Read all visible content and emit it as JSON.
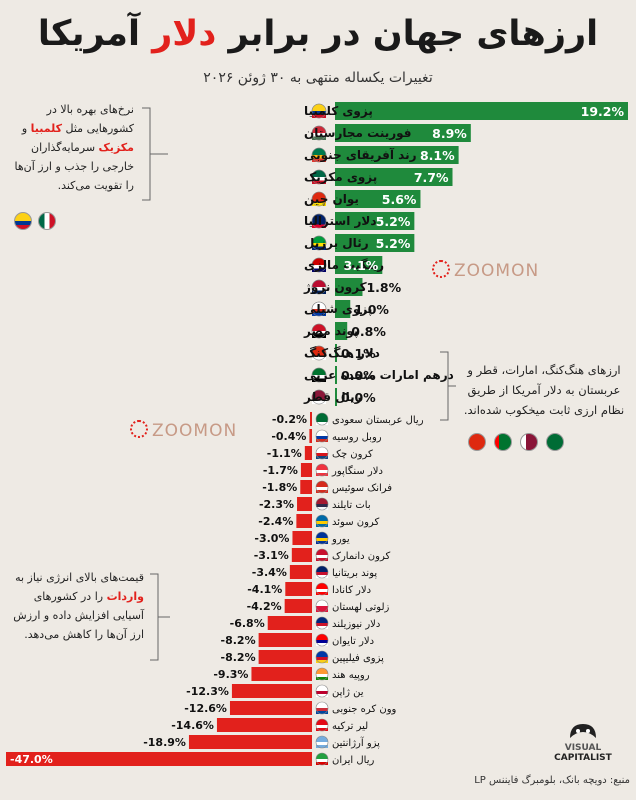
{
  "title_main": "ارزهای جهان در برابر",
  "title_accent": "دلار",
  "title_end": "آمریکا",
  "subtitle": "تغییرات یکساله منتهی به ۳۰ ژوئن ۲۰۲۶",
  "note_topleft": {
    "line1": "نرخ‌های بهره بالا در کشورهایی مثل",
    "red1": "کلمبیا",
    "mid": "و",
    "red2": "مکزیک",
    "line2": "سرمایه‌گذاران خارجی را جذب و ارز آن‌ها را تقویت می‌کند."
  },
  "note_right": "ارزهای هنگ‌کنگ، امارات، قطر و عربستان به دلار آمریکا از طریق نظام ارزی ثابت میخکوب شده‌اند.",
  "note_bottomleft": {
    "line1": "قیمت‌های بالای انرژی نیاز به",
    "red": "واردات",
    "line2": "را در کشورهای آسیایی افزایش داده و ارزش ارز آن‌ها را کاهش می‌دهد."
  },
  "watermark": "ZOOMON",
  "logo_line1": "VISUAL",
  "logo_line2": "CAPITALIST",
  "source": "منبع: دویچه بانک، بلومبرگ فایننس LP",
  "colors": {
    "positive": "#1f8a3c",
    "negative": "#e2211c",
    "neutral": "#1f8a3c"
  },
  "chart_data": {
    "type": "bar",
    "orientation": "horizontal",
    "categories": [
      "پزوی کلمبیا",
      "فورینت مجارستان",
      "رند آفریقای جنوبی",
      "پزوی مکزیک",
      "یوان چین",
      "دلار استرالیا",
      "رئال برزیل",
      "رینگیت مالزی",
      "کرون نروژ",
      "پزوی شیلی",
      "پوند مصر",
      "دلار هنگ‌کنگ",
      "درهم امارات متحده عربی",
      "ریال قطر",
      "ریال عربستان سعودی",
      "روبل روسیه",
      "کرون چک",
      "دلار سنگاپور",
      "فرانک سوئیس",
      "بات تایلند",
      "کرون سوئد",
      "یورو",
      "کرون دانمارک",
      "پوند بریتانیا",
      "دلار کانادا",
      "زلوتی لهستان",
      "دلار نیوزیلند",
      "دلار تایوان",
      "پزوی فیلیپین",
      "روپیه هند",
      "ین ژاپن",
      "وون کره جنوبی",
      "لیر ترکیه",
      "پزو آرژانتین",
      "ریال ایران"
    ],
    "values": [
      19.2,
      8.9,
      8.1,
      7.7,
      5.6,
      5.2,
      5.2,
      3.1,
      1.8,
      1.0,
      0.8,
      0.1,
      0.0,
      0.0,
      -0.2,
      -0.4,
      -1.1,
      -1.7,
      -1.8,
      -2.3,
      -2.4,
      -3.0,
      -3.1,
      -3.4,
      -4.1,
      -4.2,
      -6.8,
      -8.2,
      -8.2,
      -9.3,
      -12.3,
      -12.6,
      -14.6,
      -18.9,
      -47.0
    ],
    "labels": [
      "19.2%",
      "8.9%",
      "8.1%",
      "7.7%",
      "5.6%",
      "5.2%",
      "5.2%",
      "3.1%",
      "1.8%",
      "1.0%",
      "0.8%",
      "0.1%",
      "0.0%",
      "0.0%",
      "-0.2%",
      "-0.4%",
      "-1.1%",
      "-1.7%",
      "-1.8%",
      "-2.3%",
      "-2.4%",
      "-3.0%",
      "-3.1%",
      "-3.4%",
      "-4.1%",
      "-4.2%",
      "-6.8%",
      "-8.2%",
      "-8.2%",
      "-9.3%",
      "-12.3%",
      "-12.6%",
      "-14.6%",
      "-18.9%",
      "-47.0%"
    ],
    "flags": [
      [
        "#fcd116",
        "#003893",
        "#ce1126"
      ],
      [
        "#ce2939",
        "#ffffff",
        "#477050"
      ],
      [
        "#007a4d",
        "#ffb612",
        "#de3831"
      ],
      [
        "#006847",
        "#ffffff",
        "#ce1126"
      ],
      [
        "#de2910",
        "#de2910",
        "#ffde00"
      ],
      [
        "#012169",
        "#012169",
        "#e4002b"
      ],
      [
        "#009c3b",
        "#ffdf00",
        "#002776"
      ],
      [
        "#cc0001",
        "#ffffff",
        "#010066"
      ],
      [
        "#ba0c2f",
        "#ffffff",
        "#00205b"
      ],
      [
        "#ffffff",
        "#d52b1e",
        "#0039a6"
      ],
      [
        "#ce1126",
        "#ffffff",
        "#000000"
      ],
      [
        "#de2910",
        "#de2910",
        "#ffffff"
      ],
      [
        "#00732f",
        "#ffffff",
        "#000000"
      ],
      [
        "#8a1538",
        "#8a1538",
        "#ffffff"
      ],
      [
        "#006c35",
        "#006c35",
        "#ffffff"
      ],
      [
        "#ffffff",
        "#0039a6",
        "#d52b1e"
      ],
      [
        "#ffffff",
        "#d7141a",
        "#11457e"
      ],
      [
        "#ef3340",
        "#ffffff",
        "#ef3340"
      ],
      [
        "#d52b1e",
        "#ffffff",
        "#d52b1e"
      ],
      [
        "#a51931",
        "#2d2a4a",
        "#f4f5f8"
      ],
      [
        "#006aa7",
        "#fecc00",
        "#006aa7"
      ],
      [
        "#003399",
        "#ffcc00",
        "#003399"
      ],
      [
        "#c8102e",
        "#ffffff",
        "#c8102e"
      ],
      [
        "#012169",
        "#c8102e",
        "#ffffff"
      ],
      [
        "#ff0000",
        "#ffffff",
        "#ff0000"
      ],
      [
        "#ffffff",
        "#dc143c",
        "#dc143c"
      ],
      [
        "#00247d",
        "#cc142b",
        "#ffffff"
      ],
      [
        "#fe0000",
        "#000095",
        "#ffffff"
      ],
      [
        "#0038a8",
        "#ce1126",
        "#fcd116"
      ],
      [
        "#ff9933",
        "#ffffff",
        "#138808"
      ],
      [
        "#ffffff",
        "#bc002d",
        "#ffffff"
      ],
      [
        "#ffffff",
        "#cd2e3a",
        "#0047a0"
      ],
      [
        "#e30a17",
        "#ffffff",
        "#e30a17"
      ],
      [
        "#74acdf",
        "#ffffff",
        "#74acdf"
      ],
      [
        "#239f40",
        "#ffffff",
        "#da0000"
      ]
    ],
    "xlim": [
      -47.0,
      19.2
    ]
  }
}
